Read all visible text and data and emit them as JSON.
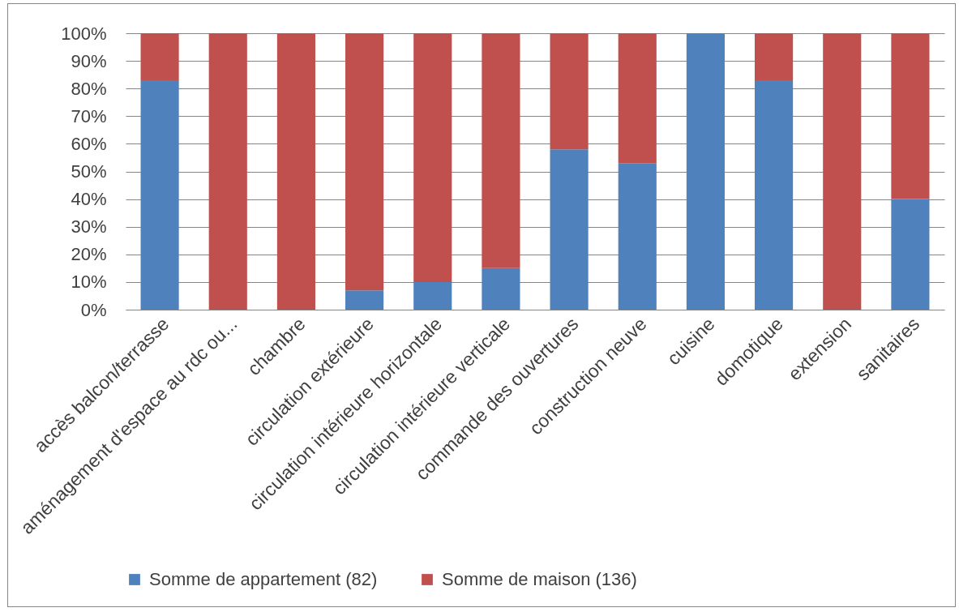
{
  "chart_data": {
    "type": "bar",
    "stacked": true,
    "categories": [
      "accès balcon/terrasse",
      "aménagement d'espace au rdc ou...",
      "chambre",
      "circulation extérieure",
      "circulation intérieure horizontale",
      "circulation intérieure verticale",
      "commande des ouvertures",
      "construction neuve",
      "cuisine",
      "domotique",
      "extension",
      "sanitaires"
    ],
    "series": [
      {
        "name": "Somme de appartement (82)",
        "color": "#4f81bd",
        "values": [
          83,
          0,
          0,
          7,
          10,
          15,
          58,
          53,
          100,
          83,
          0,
          40
        ]
      },
      {
        "name": "Somme de maison (136)",
        "color": "#c0504d",
        "values": [
          17,
          100,
          100,
          93,
          90,
          85,
          42,
          47,
          0,
          17,
          100,
          60
        ]
      }
    ],
    "ylim": [
      0,
      100
    ],
    "yticks": [
      {
        "value": 0,
        "label": "0%"
      },
      {
        "value": 10,
        "label": "10%"
      },
      {
        "value": 20,
        "label": "20%"
      },
      {
        "value": 30,
        "label": "30%"
      },
      {
        "value": 40,
        "label": "40%"
      },
      {
        "value": 50,
        "label": "50%"
      },
      {
        "value": 60,
        "label": "60%"
      },
      {
        "value": 70,
        "label": "70%"
      },
      {
        "value": 80,
        "label": "80%"
      },
      {
        "value": 90,
        "label": "90%"
      },
      {
        "value": 100,
        "label": "100%"
      }
    ],
    "grid": "y",
    "legend": "bottom"
  }
}
